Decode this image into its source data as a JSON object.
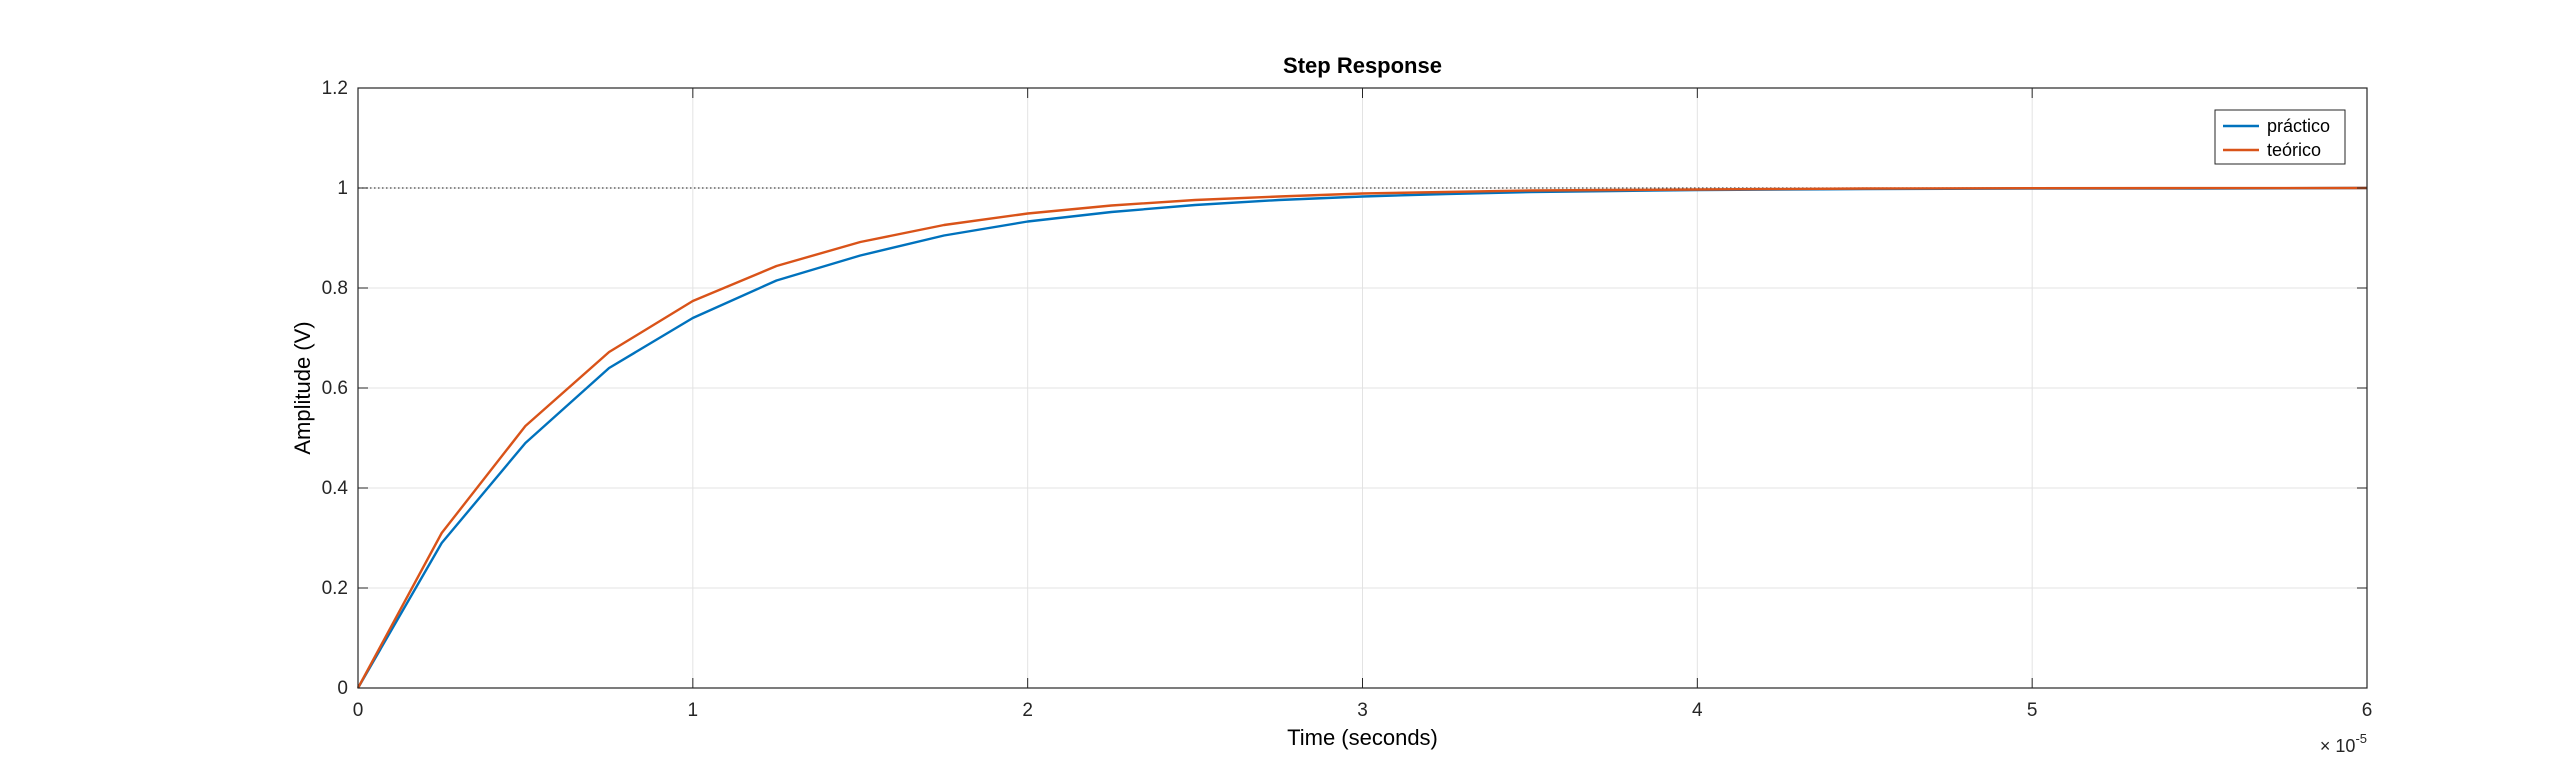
{
  "chart_data": {
    "type": "line",
    "title": "Step Response",
    "xlabel": "Time (seconds)",
    "ylabel": "Amplitude (V)",
    "x_exponent_label": {
      "base": "× 10",
      "exp": "-5"
    },
    "xlim": [
      0,
      6e-05
    ],
    "ylim": [
      0,
      1.2
    ],
    "x_ticks": [
      0,
      1e-05,
      2e-05,
      3e-05,
      4e-05,
      5e-05,
      6e-05
    ],
    "x_tick_labels": [
      "0",
      "1",
      "2",
      "3",
      "4",
      "5",
      "6"
    ],
    "y_ticks": [
      0,
      0.2,
      0.4,
      0.6,
      0.8,
      1,
      1.2
    ],
    "y_tick_labels": [
      "0",
      "0.2",
      "0.4",
      "0.6",
      "0.8",
      "1",
      "1.2"
    ],
    "grid": true,
    "reference_line": {
      "y": 1,
      "style": "dotted"
    },
    "legend": {
      "placement": "top-right",
      "entries": [
        "práctico",
        "teórico"
      ]
    },
    "series": [
      {
        "name": "práctico",
        "color": "#0072BD",
        "x": [
          0,
          2.5e-06,
          5e-06,
          7.5e-06,
          1e-05,
          1.25e-05,
          1.5e-05,
          1.75e-05,
          2e-05,
          2.25e-05,
          2.5e-05,
          2.75e-05,
          3e-05,
          3.25e-05,
          3.5e-05,
          3.75e-05,
          4e-05,
          4.5e-05,
          5e-05,
          5.5e-05,
          6e-05
        ],
        "y": [
          0,
          0.29,
          0.49,
          0.64,
          0.74,
          0.815,
          0.865,
          0.905,
          0.933,
          0.952,
          0.966,
          0.976,
          0.983,
          0.988,
          0.992,
          0.994,
          0.996,
          0.998,
          0.999,
          0.999,
          1.0
        ]
      },
      {
        "name": "teórico",
        "color": "#D95319",
        "x": [
          0,
          2.5e-06,
          5e-06,
          7.5e-06,
          1e-05,
          1.25e-05,
          1.5e-05,
          1.75e-05,
          2e-05,
          2.25e-05,
          2.5e-05,
          2.75e-05,
          3e-05,
          3.25e-05,
          3.5e-05,
          3.75e-05,
          4e-05,
          4.5e-05,
          5e-05,
          5.5e-05,
          6e-05
        ],
        "y": [
          0,
          0.31,
          0.524,
          0.672,
          0.774,
          0.844,
          0.892,
          0.926,
          0.949,
          0.965,
          0.976,
          0.983,
          0.989,
          0.992,
          0.995,
          0.996,
          0.997,
          0.999,
          0.9995,
          0.9998,
          1.0
        ]
      }
    ]
  }
}
